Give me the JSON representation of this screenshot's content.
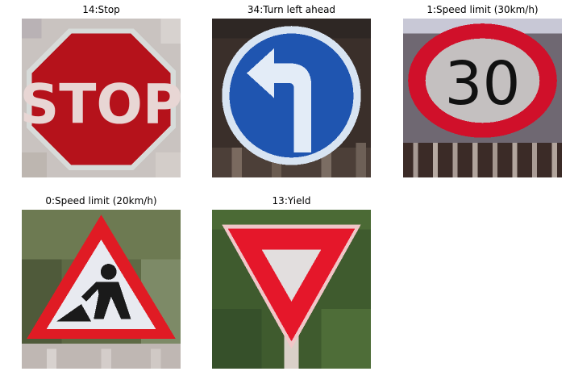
{
  "panels": [
    {
      "title": "14:Stop",
      "sign_icon": "stop-sign-icon",
      "sign_text": "STOP",
      "colors": {
        "sign": "#b5121b",
        "background": "#c9c3c0"
      }
    },
    {
      "title": "34:Turn left ahead",
      "sign_icon": "turn-left-ahead-sign-icon",
      "sign_text": "",
      "colors": {
        "sign": "#1f55b0",
        "background": "#3a2f2a"
      }
    },
    {
      "title": "1:Speed limit (30km/h)",
      "sign_icon": "speed-limit-sign-icon",
      "sign_text": "30",
      "colors": {
        "sign": "#d0102a",
        "background": "#3b2b27"
      }
    },
    {
      "title": "0:Speed limit (20km/h)",
      "sign_icon": "road-work-sign-icon",
      "sign_text": "",
      "colors": {
        "sign": "#e01b24",
        "background": "#5e6a45"
      }
    },
    {
      "title": "13:Yield",
      "sign_icon": "yield-sign-icon",
      "sign_text": "",
      "colors": {
        "sign": "#e5172a",
        "background": "#3f5b2e"
      }
    }
  ]
}
